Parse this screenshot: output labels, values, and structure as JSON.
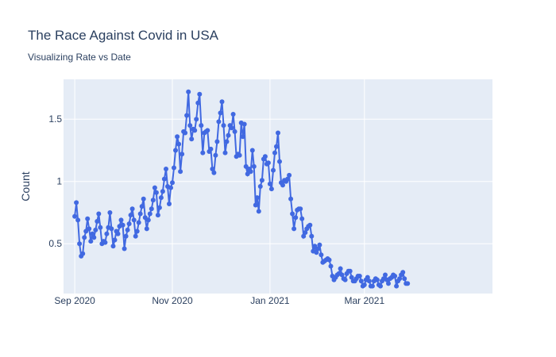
{
  "chart_data": {
    "type": "line",
    "title": "The Race Against Covid in USA",
    "subtitle": "Visualizing Rate vs Date",
    "xlabel": "",
    "ylabel": "Count",
    "x_start": "2020-09-01",
    "x_range": [
      "2020-08-25",
      "2021-05-20"
    ],
    "ylim": [
      0.1,
      1.82
    ],
    "x_ticks": [
      {
        "date": "2020-09-01",
        "label": "Sep 2020"
      },
      {
        "date": "2020-11-01",
        "label": "Nov 2020"
      },
      {
        "date": "2021-01-01",
        "label": "Jan 2021"
      },
      {
        "date": "2021-03-01",
        "label": "Mar 2021"
      }
    ],
    "y_ticks": [
      {
        "value": 0.5,
        "label": "0.5"
      },
      {
        "value": 1,
        "label": "1"
      },
      {
        "value": 1.5,
        "label": "1.5"
      }
    ],
    "grid": true,
    "legend": "none",
    "colors": {
      "line": "#4169e1",
      "plot_bg": "#e5ecf6",
      "grid": "#ffffff",
      "text": "#2a3f5f"
    },
    "series": [
      {
        "values": [
          0.72,
          0.83,
          0.69,
          0.5,
          0.4,
          0.42,
          0.55,
          0.6,
          0.7,
          0.62,
          0.52,
          0.58,
          0.55,
          0.61,
          0.68,
          0.74,
          0.63,
          0.5,
          0.52,
          0.51,
          0.58,
          0.63,
          0.75,
          0.62,
          0.48,
          0.53,
          0.6,
          0.58,
          0.64,
          0.69,
          0.65,
          0.46,
          0.56,
          0.61,
          0.66,
          0.73,
          0.78,
          0.69,
          0.56,
          0.6,
          0.67,
          0.74,
          0.8,
          0.86,
          0.71,
          0.62,
          0.69,
          0.74,
          0.78,
          0.85,
          0.95,
          0.91,
          0.73,
          0.79,
          0.87,
          0.92,
          1.02,
          1.1,
          0.96,
          0.82,
          0.95,
          0.99,
          1.11,
          1.25,
          1.36,
          1.3,
          1.08,
          1.22,
          1.4,
          1.39,
          1.53,
          1.72,
          1.45,
          1.34,
          1.42,
          1.41,
          1.5,
          1.63,
          1.7,
          1.45,
          1.23,
          1.39,
          1.4,
          1.41,
          1.24,
          1.26,
          1.1,
          1.07,
          1.21,
          1.32,
          1.48,
          1.55,
          1.64,
          1.45,
          1.23,
          1.32,
          1.37,
          1.45,
          1.43,
          1.54,
          1.4,
          1.2,
          1.22,
          1.21,
          1.47,
          1.36,
          1.46,
          1.12,
          1.06,
          1.1,
          1.08,
          1.25,
          1.12,
          0.81,
          0.87,
          0.76,
          0.96,
          1.01,
          1.18,
          1.2,
          1.14,
          1.15,
          0.98,
          0.94,
          1.09,
          1.23,
          1.28,
          1.39,
          1.16,
          0.99,
          0.97,
          1.01,
          1.0,
          1.02,
          1.05,
          0.86,
          0.74,
          0.62,
          0.71,
          0.77,
          0.78,
          0.78,
          0.7,
          0.56,
          0.59,
          0.62,
          0.64,
          0.65,
          0.56,
          0.44,
          0.48,
          0.43,
          0.46,
          0.49,
          0.41,
          0.35,
          0.36,
          0.37,
          0.38,
          0.37,
          0.32,
          0.24,
          0.21,
          0.23,
          0.25,
          0.26,
          0.3,
          0.25,
          0.22,
          0.21,
          0.26,
          0.28,
          0.28,
          0.23,
          0.2,
          0.2,
          0.22,
          0.24,
          0.24,
          0.2,
          0.16,
          0.17,
          0.21,
          0.23,
          0.2,
          0.16,
          0.16,
          0.2,
          0.22,
          0.21,
          0.17,
          0.16,
          0.2,
          0.22,
          0.25,
          0.21,
          0.18,
          0.22,
          0.23,
          0.25,
          0.24,
          0.16,
          0.2,
          0.22,
          0.25,
          0.27,
          0.22,
          0.18,
          0.18
        ]
      }
    ]
  }
}
